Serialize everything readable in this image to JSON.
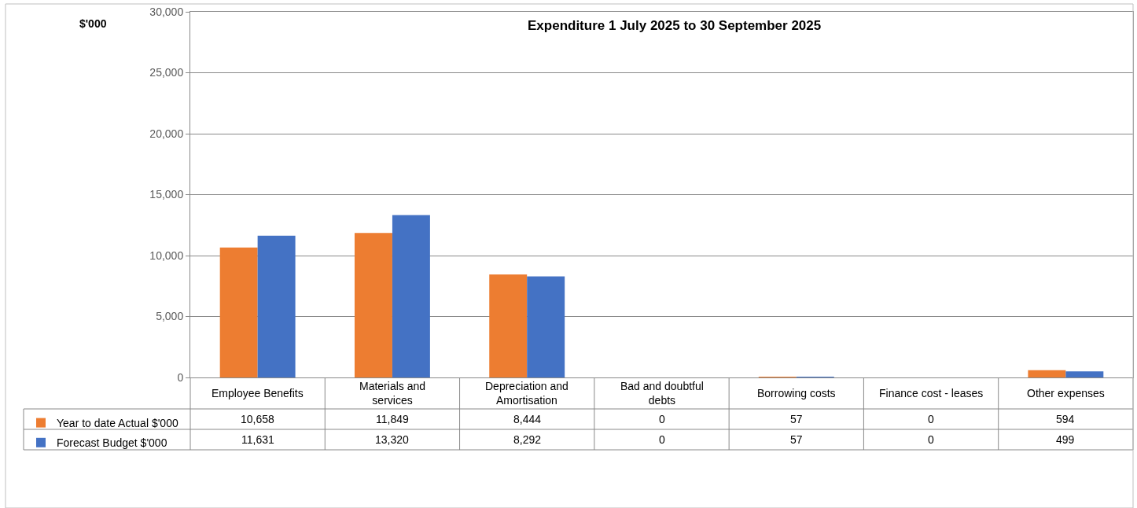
{
  "chart_data": {
    "type": "bar",
    "title": "Expenditure 1 July 2025 to 30 September 2025",
    "ylabel": "$'000",
    "categories": [
      "Employee Benefits",
      "Materials and services",
      "Depreciation and Amortisation",
      "Bad and doubtful debts",
      "Borrowing costs",
      "Finance cost - leases",
      "Other expenses"
    ],
    "series": [
      {
        "name": "Year to date Actual $'000",
        "color": "#ed7d31",
        "values": [
          10658,
          11849,
          8444,
          0,
          57,
          0,
          594
        ],
        "value_labels": [
          "10,658",
          "11,849",
          "8,444",
          "0",
          "57",
          "0",
          "594"
        ]
      },
      {
        "name": "Forecast Budget $'000",
        "color": "#4472c4",
        "values": [
          11631,
          13320,
          8292,
          0,
          57,
          0,
          499
        ],
        "value_labels": [
          "11,631",
          "13,320",
          "8,292",
          "0",
          "57",
          "0",
          "499"
        ]
      }
    ],
    "ylim": [
      0,
      30000
    ],
    "yticks": [
      0,
      {
        "value": 5000,
        "label": "5,000"
      },
      {
        "value": 10000,
        "label": "10,000"
      },
      {
        "value": 15000,
        "label": "15,000"
      },
      {
        "value": 20000,
        "label": "20,000"
      },
      {
        "value": 25000,
        "label": "25,000"
      },
      {
        "value": 30000,
        "label": "30,000"
      }
    ],
    "grid": "y",
    "legend": "bottom left"
  }
}
